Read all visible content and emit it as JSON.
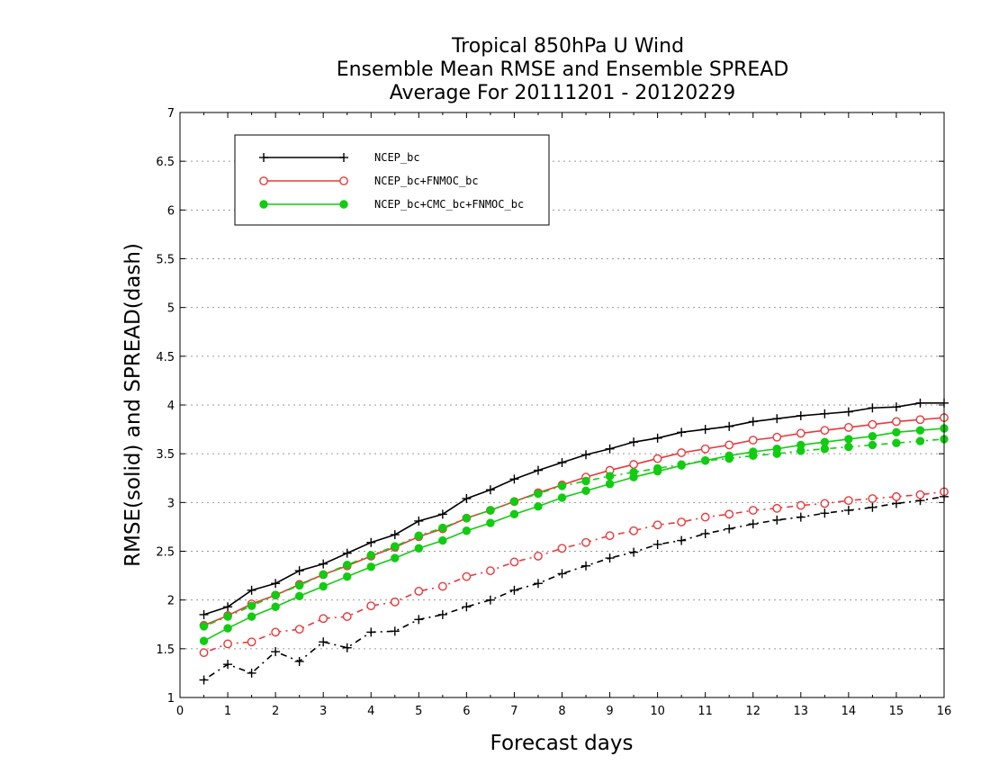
{
  "chart_data": {
    "type": "line",
    "title": [
      "Tropical 850hPa U Wind",
      "Ensemble Mean RMSE and Ensemble SPREAD",
      "Average For 20111201 - 20120229"
    ],
    "xlabel": "Forecast days",
    "ylabel": "RMSE(solid) and SPREAD(dash)",
    "xlim": [
      0,
      16
    ],
    "ylim": [
      1,
      7
    ],
    "x_ticks": [
      0,
      1,
      2,
      3,
      4,
      5,
      6,
      7,
      8,
      9,
      10,
      11,
      12,
      13,
      14,
      15,
      16
    ],
    "y_ticks": [
      1,
      1.5,
      2,
      2.5,
      3,
      3.5,
      4,
      4.5,
      5,
      5.5,
      6,
      6.5,
      7
    ],
    "grid": "horizontal-dotted",
    "legend_position": "top-left",
    "x": [
      0.5,
      1,
      1.5,
      2,
      2.5,
      3,
      3.5,
      4,
      4.5,
      5,
      5.5,
      6,
      6.5,
      7,
      7.5,
      8,
      8.5,
      9,
      9.5,
      10,
      10.5,
      11,
      11.5,
      12,
      12.5,
      13,
      13.5,
      14,
      14.5,
      15,
      15.5,
      16
    ],
    "series": [
      {
        "name": "NCEP_bc",
        "color": "#000000",
        "marker": "plus",
        "rmse": [
          1.85,
          1.93,
          2.1,
          2.17,
          2.3,
          2.37,
          2.48,
          2.59,
          2.67,
          2.81,
          2.88,
          3.04,
          3.13,
          3.24,
          3.33,
          3.41,
          3.49,
          3.55,
          3.62,
          3.66,
          3.72,
          3.75,
          3.78,
          3.83,
          3.86,
          3.89,
          3.91,
          3.93,
          3.97,
          3.98,
          4.02,
          4.02
        ],
        "spread": [
          1.18,
          1.34,
          1.25,
          1.47,
          1.37,
          1.57,
          1.51,
          1.67,
          1.68,
          1.8,
          1.85,
          1.93,
          2.0,
          2.1,
          2.17,
          2.27,
          2.35,
          2.43,
          2.49,
          2.57,
          2.61,
          2.68,
          2.73,
          2.78,
          2.82,
          2.85,
          2.89,
          2.92,
          2.95,
          2.99,
          3.02,
          3.06
        ]
      },
      {
        "name": "NCEP_bc+FNMOC_bc",
        "color": "#e8393b",
        "marker": "open-circle",
        "rmse": [
          1.74,
          1.84,
          1.96,
          2.05,
          2.16,
          2.26,
          2.35,
          2.45,
          2.54,
          2.65,
          2.73,
          2.84,
          2.92,
          3.01,
          3.1,
          3.18,
          3.26,
          3.33,
          3.39,
          3.45,
          3.51,
          3.55,
          3.59,
          3.64,
          3.67,
          3.71,
          3.74,
          3.77,
          3.8,
          3.83,
          3.85,
          3.87
        ],
        "spread": [
          1.46,
          1.55,
          1.57,
          1.67,
          1.7,
          1.81,
          1.83,
          1.94,
          1.98,
          2.09,
          2.14,
          2.24,
          2.3,
          2.39,
          2.45,
          2.53,
          2.59,
          2.66,
          2.71,
          2.77,
          2.8,
          2.85,
          2.88,
          2.92,
          2.94,
          2.97,
          2.99,
          3.02,
          3.04,
          3.06,
          3.08,
          3.11
        ]
      },
      {
        "name": "NCEP_bc+CMC_bc+FNMOC_bc",
        "color": "#11cc11",
        "marker": "filled-circle",
        "rmse": [
          1.58,
          1.71,
          1.83,
          1.93,
          2.04,
          2.14,
          2.24,
          2.34,
          2.43,
          2.53,
          2.61,
          2.71,
          2.79,
          2.88,
          2.96,
          3.05,
          3.12,
          3.19,
          3.26,
          3.32,
          3.38,
          3.43,
          3.48,
          3.52,
          3.55,
          3.59,
          3.62,
          3.65,
          3.68,
          3.72,
          3.74,
          3.76
        ],
        "spread": [
          1.73,
          1.83,
          1.94,
          2.05,
          2.15,
          2.26,
          2.36,
          2.46,
          2.55,
          2.66,
          2.74,
          2.84,
          2.92,
          3.01,
          3.09,
          3.17,
          3.22,
          3.27,
          3.31,
          3.35,
          3.39,
          3.43,
          3.45,
          3.48,
          3.5,
          3.53,
          3.55,
          3.57,
          3.59,
          3.61,
          3.63,
          3.65
        ]
      }
    ]
  }
}
